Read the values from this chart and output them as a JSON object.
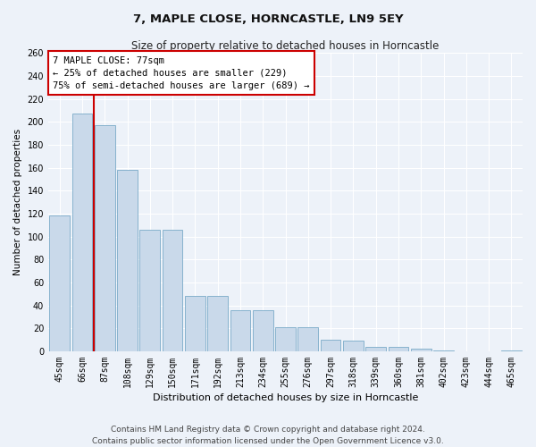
{
  "title": "7, MAPLE CLOSE, HORNCASTLE, LN9 5EY",
  "subtitle": "Size of property relative to detached houses in Horncastle",
  "xlabel": "Distribution of detached houses by size in Horncastle",
  "ylabel": "Number of detached properties",
  "bar_color": "#c9d9ea",
  "bar_edge_color": "#7aaac8",
  "categories": [
    "45sqm",
    "66sqm",
    "87sqm",
    "108sqm",
    "129sqm",
    "150sqm",
    "171sqm",
    "192sqm",
    "213sqm",
    "234sqm",
    "255sqm",
    "276sqm",
    "297sqm",
    "318sqm",
    "339sqm",
    "360sqm",
    "381sqm",
    "402sqm",
    "423sqm",
    "444sqm",
    "465sqm"
  ],
  "values": [
    118,
    207,
    197,
    158,
    106,
    106,
    48,
    48,
    36,
    36,
    21,
    21,
    10,
    9,
    4,
    4,
    2,
    1,
    0,
    0,
    1
  ],
  "ylim": [
    0,
    260
  ],
  "yticks": [
    0,
    20,
    40,
    60,
    80,
    100,
    120,
    140,
    160,
    180,
    200,
    220,
    240,
    260
  ],
  "vline_x": 1.5,
  "vline_color": "#cc0000",
  "annotation_title": "7 MAPLE CLOSE: 77sqm",
  "annotation_line1": "← 25% of detached houses are smaller (229)",
  "annotation_line2": "75% of semi-detached houses are larger (689) →",
  "annotation_box_facecolor": "#ffffff",
  "annotation_box_edgecolor": "#cc0000",
  "footer_line1": "Contains HM Land Registry data © Crown copyright and database right 2024.",
  "footer_line2": "Contains public sector information licensed under the Open Government Licence v3.0.",
  "bg_color": "#edf2f9",
  "plot_bg_color": "#edf2f9",
  "grid_color": "#ffffff",
  "title_fontsize": 9.5,
  "subtitle_fontsize": 8.5,
  "xlabel_fontsize": 8,
  "ylabel_fontsize": 7.5,
  "tick_fontsize": 7,
  "annotation_fontsize": 7.5,
  "footer_fontsize": 6.5
}
